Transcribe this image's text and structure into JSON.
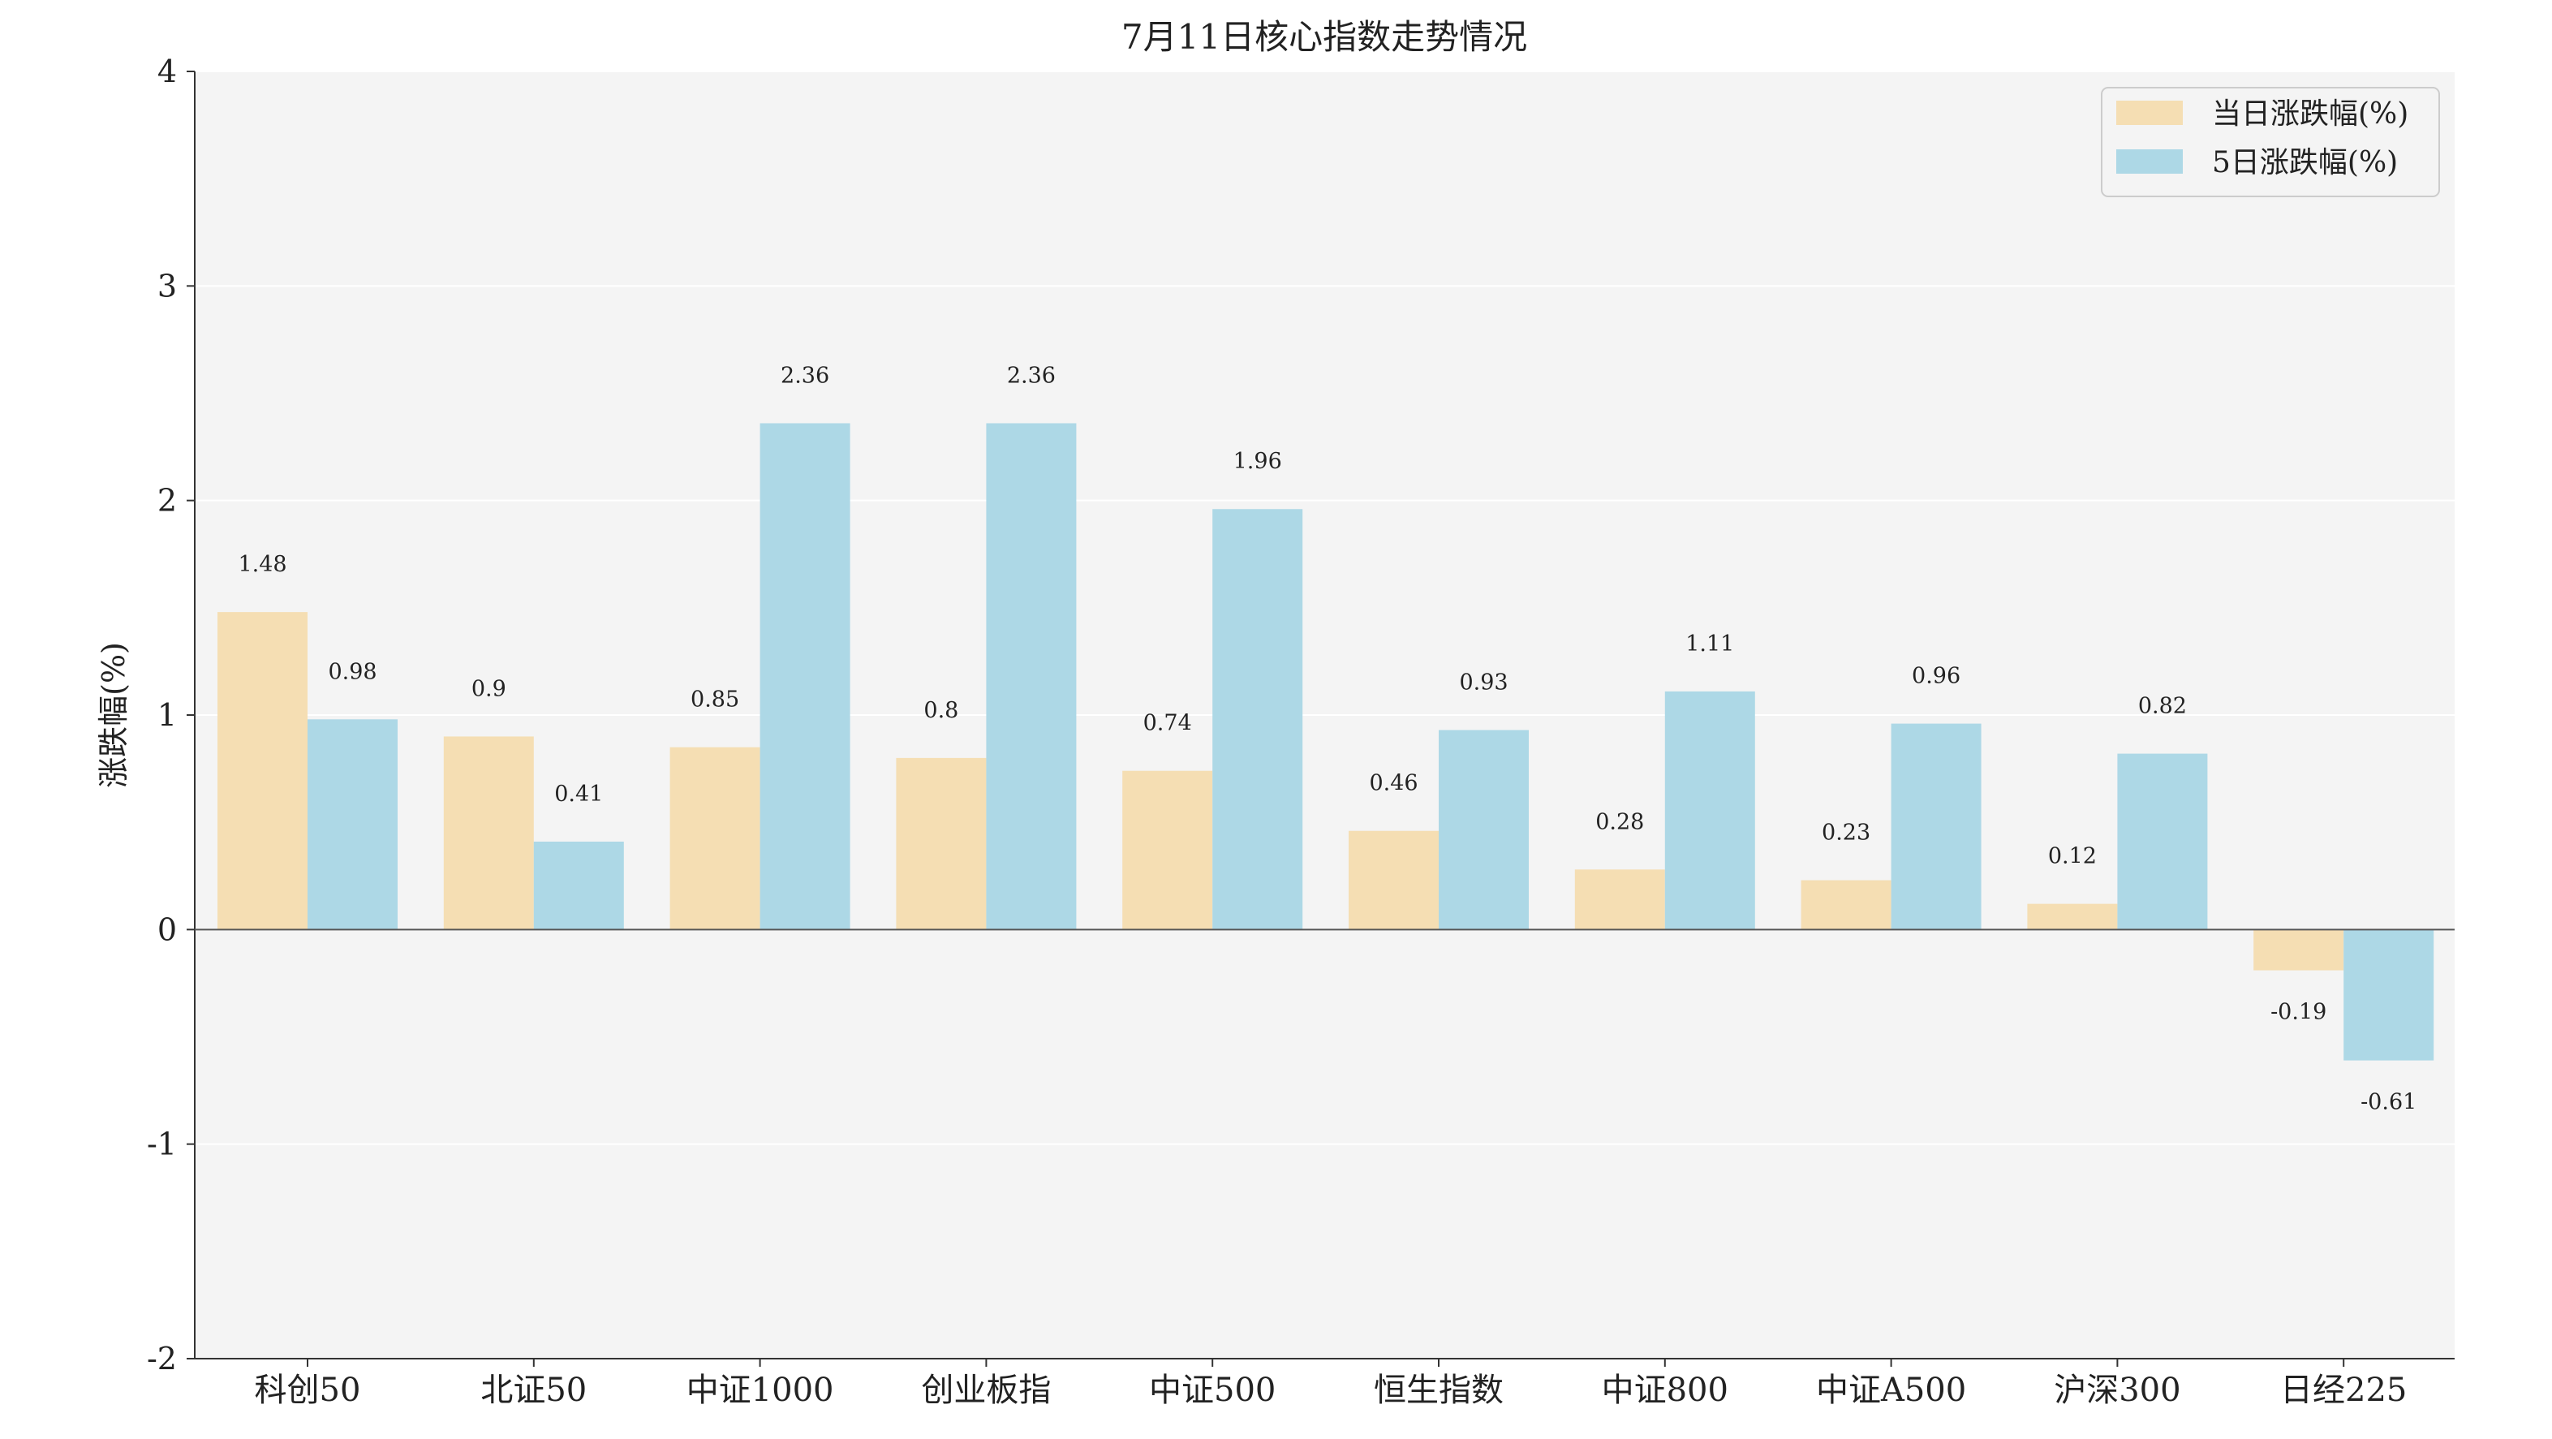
{
  "chart_data": {
    "type": "bar",
    "title": "7月11日核心指数走势情况",
    "xlabel": "",
    "ylabel": "涨跌幅(%)",
    "ylim": [
      -2,
      4
    ],
    "yticks": [
      -2,
      -1,
      0,
      1,
      2,
      3,
      4
    ],
    "grid": "horizontal",
    "legend_position": "top-right",
    "categories": [
      "科创50",
      "北证50",
      "中证1000",
      "创业板指",
      "中证500",
      "恒生指数",
      "中证800",
      "中证A500",
      "沪深300",
      "日经225"
    ],
    "series": [
      {
        "name": "当日涨跌幅(%)",
        "color": "#f5deb3",
        "values": [
          1.48,
          0.9,
          0.85,
          0.8,
          0.74,
          0.46,
          0.28,
          0.23,
          0.12,
          -0.19
        ]
      },
      {
        "name": "5日涨跌幅(%)",
        "color": "#add8e6",
        "values": [
          0.98,
          0.41,
          2.36,
          2.36,
          1.96,
          0.93,
          1.11,
          0.96,
          0.82,
          -0.61
        ]
      }
    ]
  }
}
